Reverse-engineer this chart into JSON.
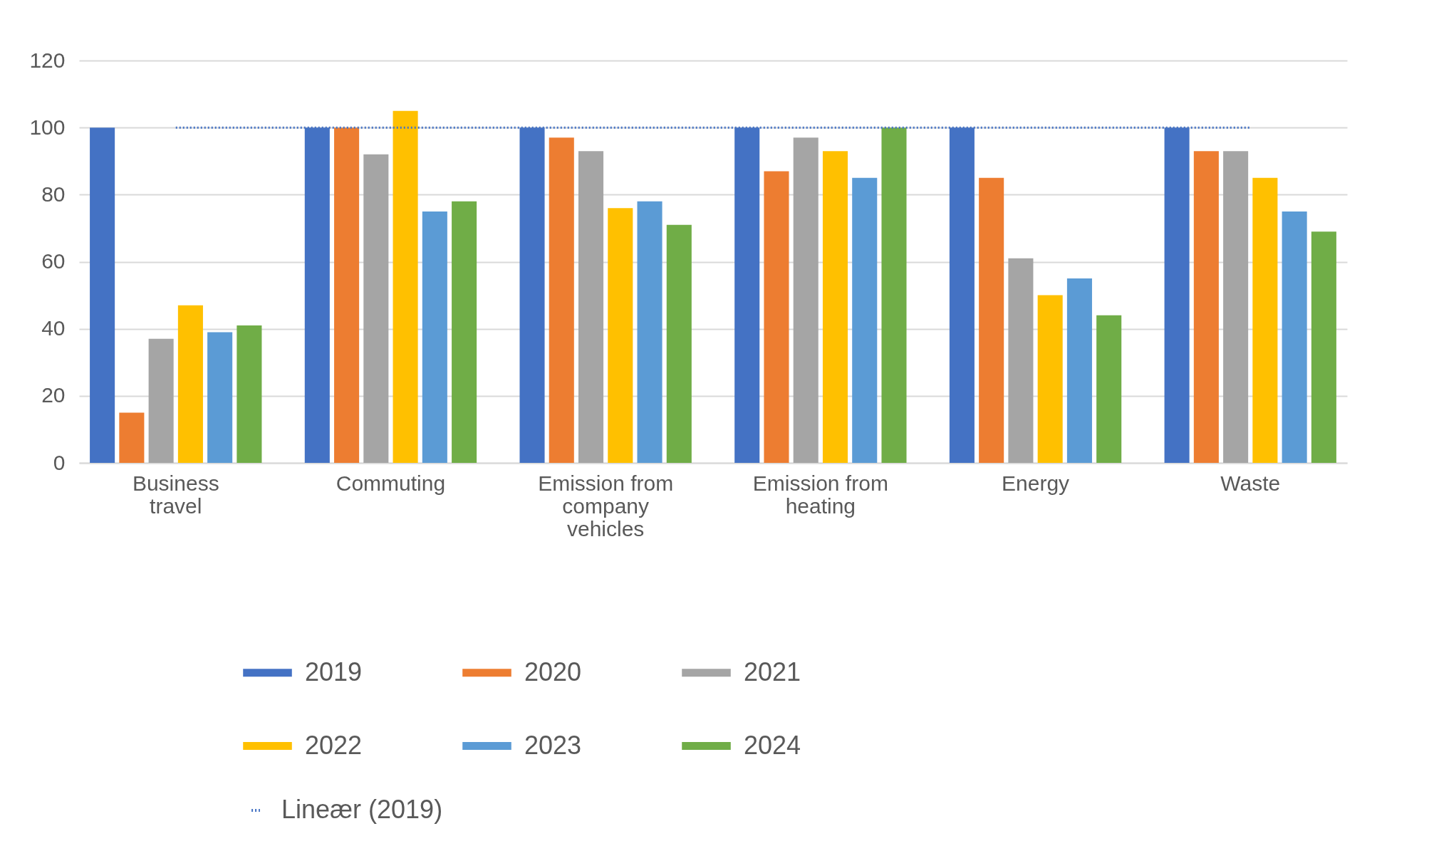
{
  "chart_data": {
    "type": "bar",
    "categories": [
      "Business travel",
      "Commuting",
      "Emission from company vehicles",
      "Emission from heating",
      "Energy",
      "Waste"
    ],
    "series": [
      {
        "name": "2019",
        "color": "#4472c4",
        "values": [
          100,
          100,
          100,
          100,
          100,
          100
        ]
      },
      {
        "name": "2020",
        "color": "#ed7d31",
        "values": [
          15,
          100,
          97,
          87,
          85,
          93
        ]
      },
      {
        "name": "2021",
        "color": "#a5a5a5",
        "values": [
          37,
          92,
          93,
          97,
          61,
          93
        ]
      },
      {
        "name": "2022",
        "color": "#ffc000",
        "values": [
          47,
          105,
          76,
          93,
          50,
          85
        ]
      },
      {
        "name": "2023",
        "color": "#5b9bd5",
        "values": [
          39,
          75,
          78,
          85,
          55,
          75
        ]
      },
      {
        "name": "2024",
        "color": "#70ad47",
        "values": [
          41,
          78,
          71,
          100,
          44,
          69
        ]
      },
      {
        "name": "Lineær (2019)",
        "type": "line",
        "line_style": "dotted",
        "color": "#4472c4",
        "values": [
          100,
          100,
          100,
          100,
          100,
          100
        ]
      }
    ],
    "ylim": [
      0,
      120
    ],
    "yticks": [
      0,
      20,
      40,
      60,
      80,
      100,
      120
    ],
    "grid": "y",
    "legend": "bottom"
  }
}
